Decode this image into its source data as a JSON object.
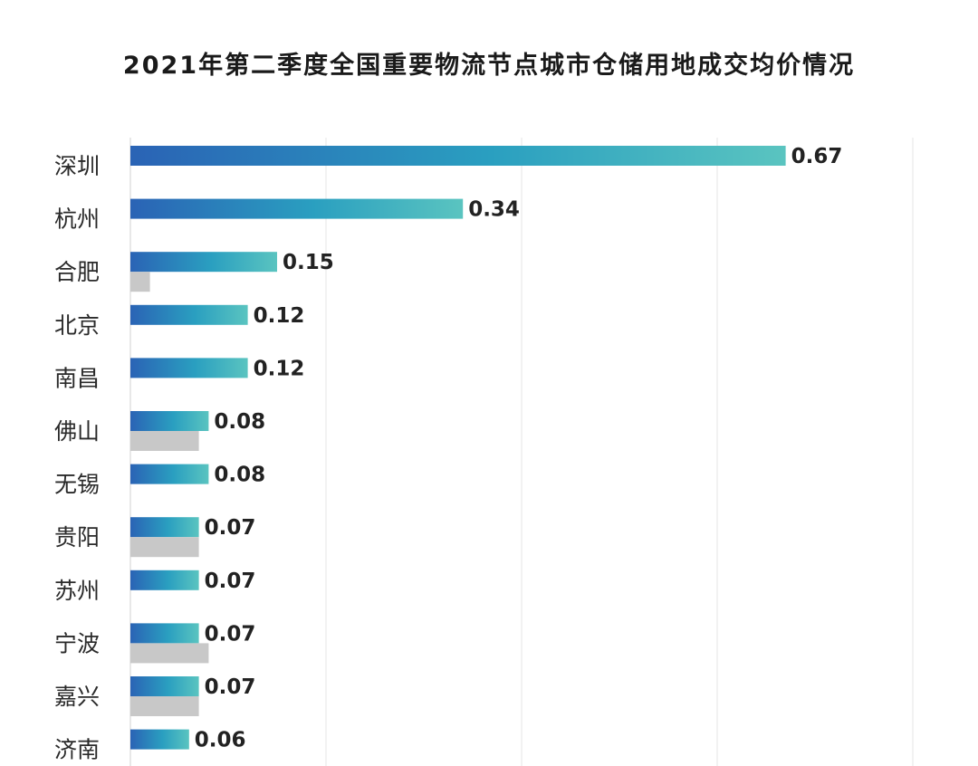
{
  "chart_data": {
    "type": "bar",
    "orientation": "horizontal",
    "title": "2021年第二季度全国重要物流节点城市仓储用地成交均价情况",
    "categories": [
      "深圳",
      "杭州",
      "合肥",
      "北京",
      "南昌",
      "佛山",
      "无锡",
      "贵阳",
      "苏州",
      "宁波",
      "嘉兴",
      "济南"
    ],
    "series": [
      {
        "values": [
          0.67,
          0.34,
          0.15,
          0.12,
          0.12,
          0.08,
          0.08,
          0.07,
          0.07,
          0.07,
          0.07,
          0.06
        ],
        "data_labels": true
      },
      {
        "values": [
          null,
          null,
          0.02,
          null,
          null,
          0.07,
          null,
          0.07,
          null,
          0.08,
          0.07,
          null
        ],
        "data_labels": false
      }
    ],
    "xlim": [
      0,
      0.8
    ],
    "grid": true,
    "legend": "none",
    "colors": {
      "bar_gradient_start": "#2a63b5",
      "bar_gradient_mid": "#2a9fc0",
      "bar_gradient_end": "#5ac4c0",
      "secondary_bar": "#c8c8c8",
      "gridline": "#e6e6e6"
    }
  }
}
